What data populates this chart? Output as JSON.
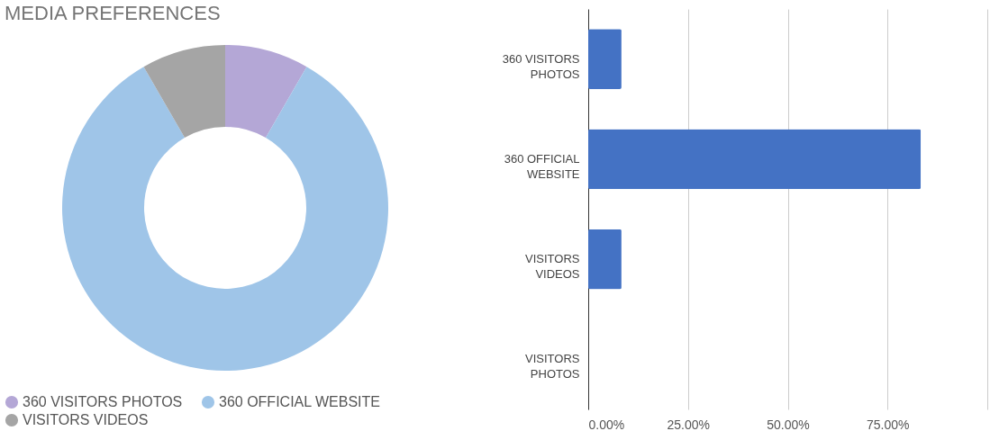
{
  "chart_data": [
    {
      "type": "donut",
      "title": "MEDIA PREFERENCES",
      "categories": [
        "360 VISITORS PHOTOS",
        "360 OFFICIAL WEBSITE",
        "VISITORS VIDEOS"
      ],
      "values": [
        8.33,
        83.34,
        8.33
      ],
      "colors": [
        "#b4a7d6",
        "#9fc5e8",
        "#a5a5a5"
      ],
      "legend": "bottom"
    },
    {
      "type": "bar",
      "orientation": "horizontal",
      "categories": [
        "360 VISITORS PHOTOS",
        "360 OFFICIAL WEBSITE",
        "VISITORS VIDEOS",
        "VISITORS PHOTOS"
      ],
      "values": [
        8.33,
        83.33,
        8.33,
        0
      ],
      "color": "#4472c4",
      "xlim": [
        0,
        100
      ],
      "xticks": [
        {
          "value": 0,
          "label": "0.00%"
        },
        {
          "value": 25,
          "label": "25.00%"
        },
        {
          "value": 50,
          "label": "50.00%"
        },
        {
          "value": 75,
          "label": "75.00%"
        },
        {
          "value": 100,
          "label": null
        }
      ],
      "grid": "x"
    }
  ]
}
